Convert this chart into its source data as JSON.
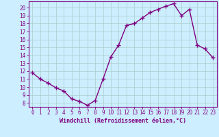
{
  "x": [
    0,
    1,
    2,
    3,
    4,
    5,
    6,
    7,
    8,
    9,
    10,
    11,
    12,
    13,
    14,
    15,
    16,
    17,
    18,
    19,
    20,
    21,
    22,
    23
  ],
  "y": [
    11.8,
    11.0,
    10.5,
    9.9,
    9.5,
    8.5,
    8.2,
    7.7,
    8.3,
    11.0,
    13.8,
    15.3,
    17.8,
    18.0,
    18.7,
    19.4,
    19.8,
    20.2,
    20.5,
    19.0,
    19.8,
    15.3,
    14.8,
    13.7
  ],
  "line_color": "#800080",
  "marker": "+",
  "markersize": 4,
  "linewidth": 1.0,
  "xlabel": "Windchill (Refroidissement éolien,°C)",
  "xlim": [
    -0.5,
    23.5
  ],
  "ylim": [
    7.5,
    20.8
  ],
  "yticks": [
    8,
    9,
    10,
    11,
    12,
    13,
    14,
    15,
    16,
    17,
    18,
    19,
    20
  ],
  "xticks": [
    0,
    1,
    2,
    3,
    4,
    5,
    6,
    7,
    8,
    9,
    10,
    11,
    12,
    13,
    14,
    15,
    16,
    17,
    18,
    19,
    20,
    21,
    22,
    23
  ],
  "bg_color": "#cceeff",
  "grid_color": "#aacccc",
  "tick_color": "#800080",
  "label_color": "#800080",
  "font_size": 5.5,
  "xlabel_font_size": 6.0
}
